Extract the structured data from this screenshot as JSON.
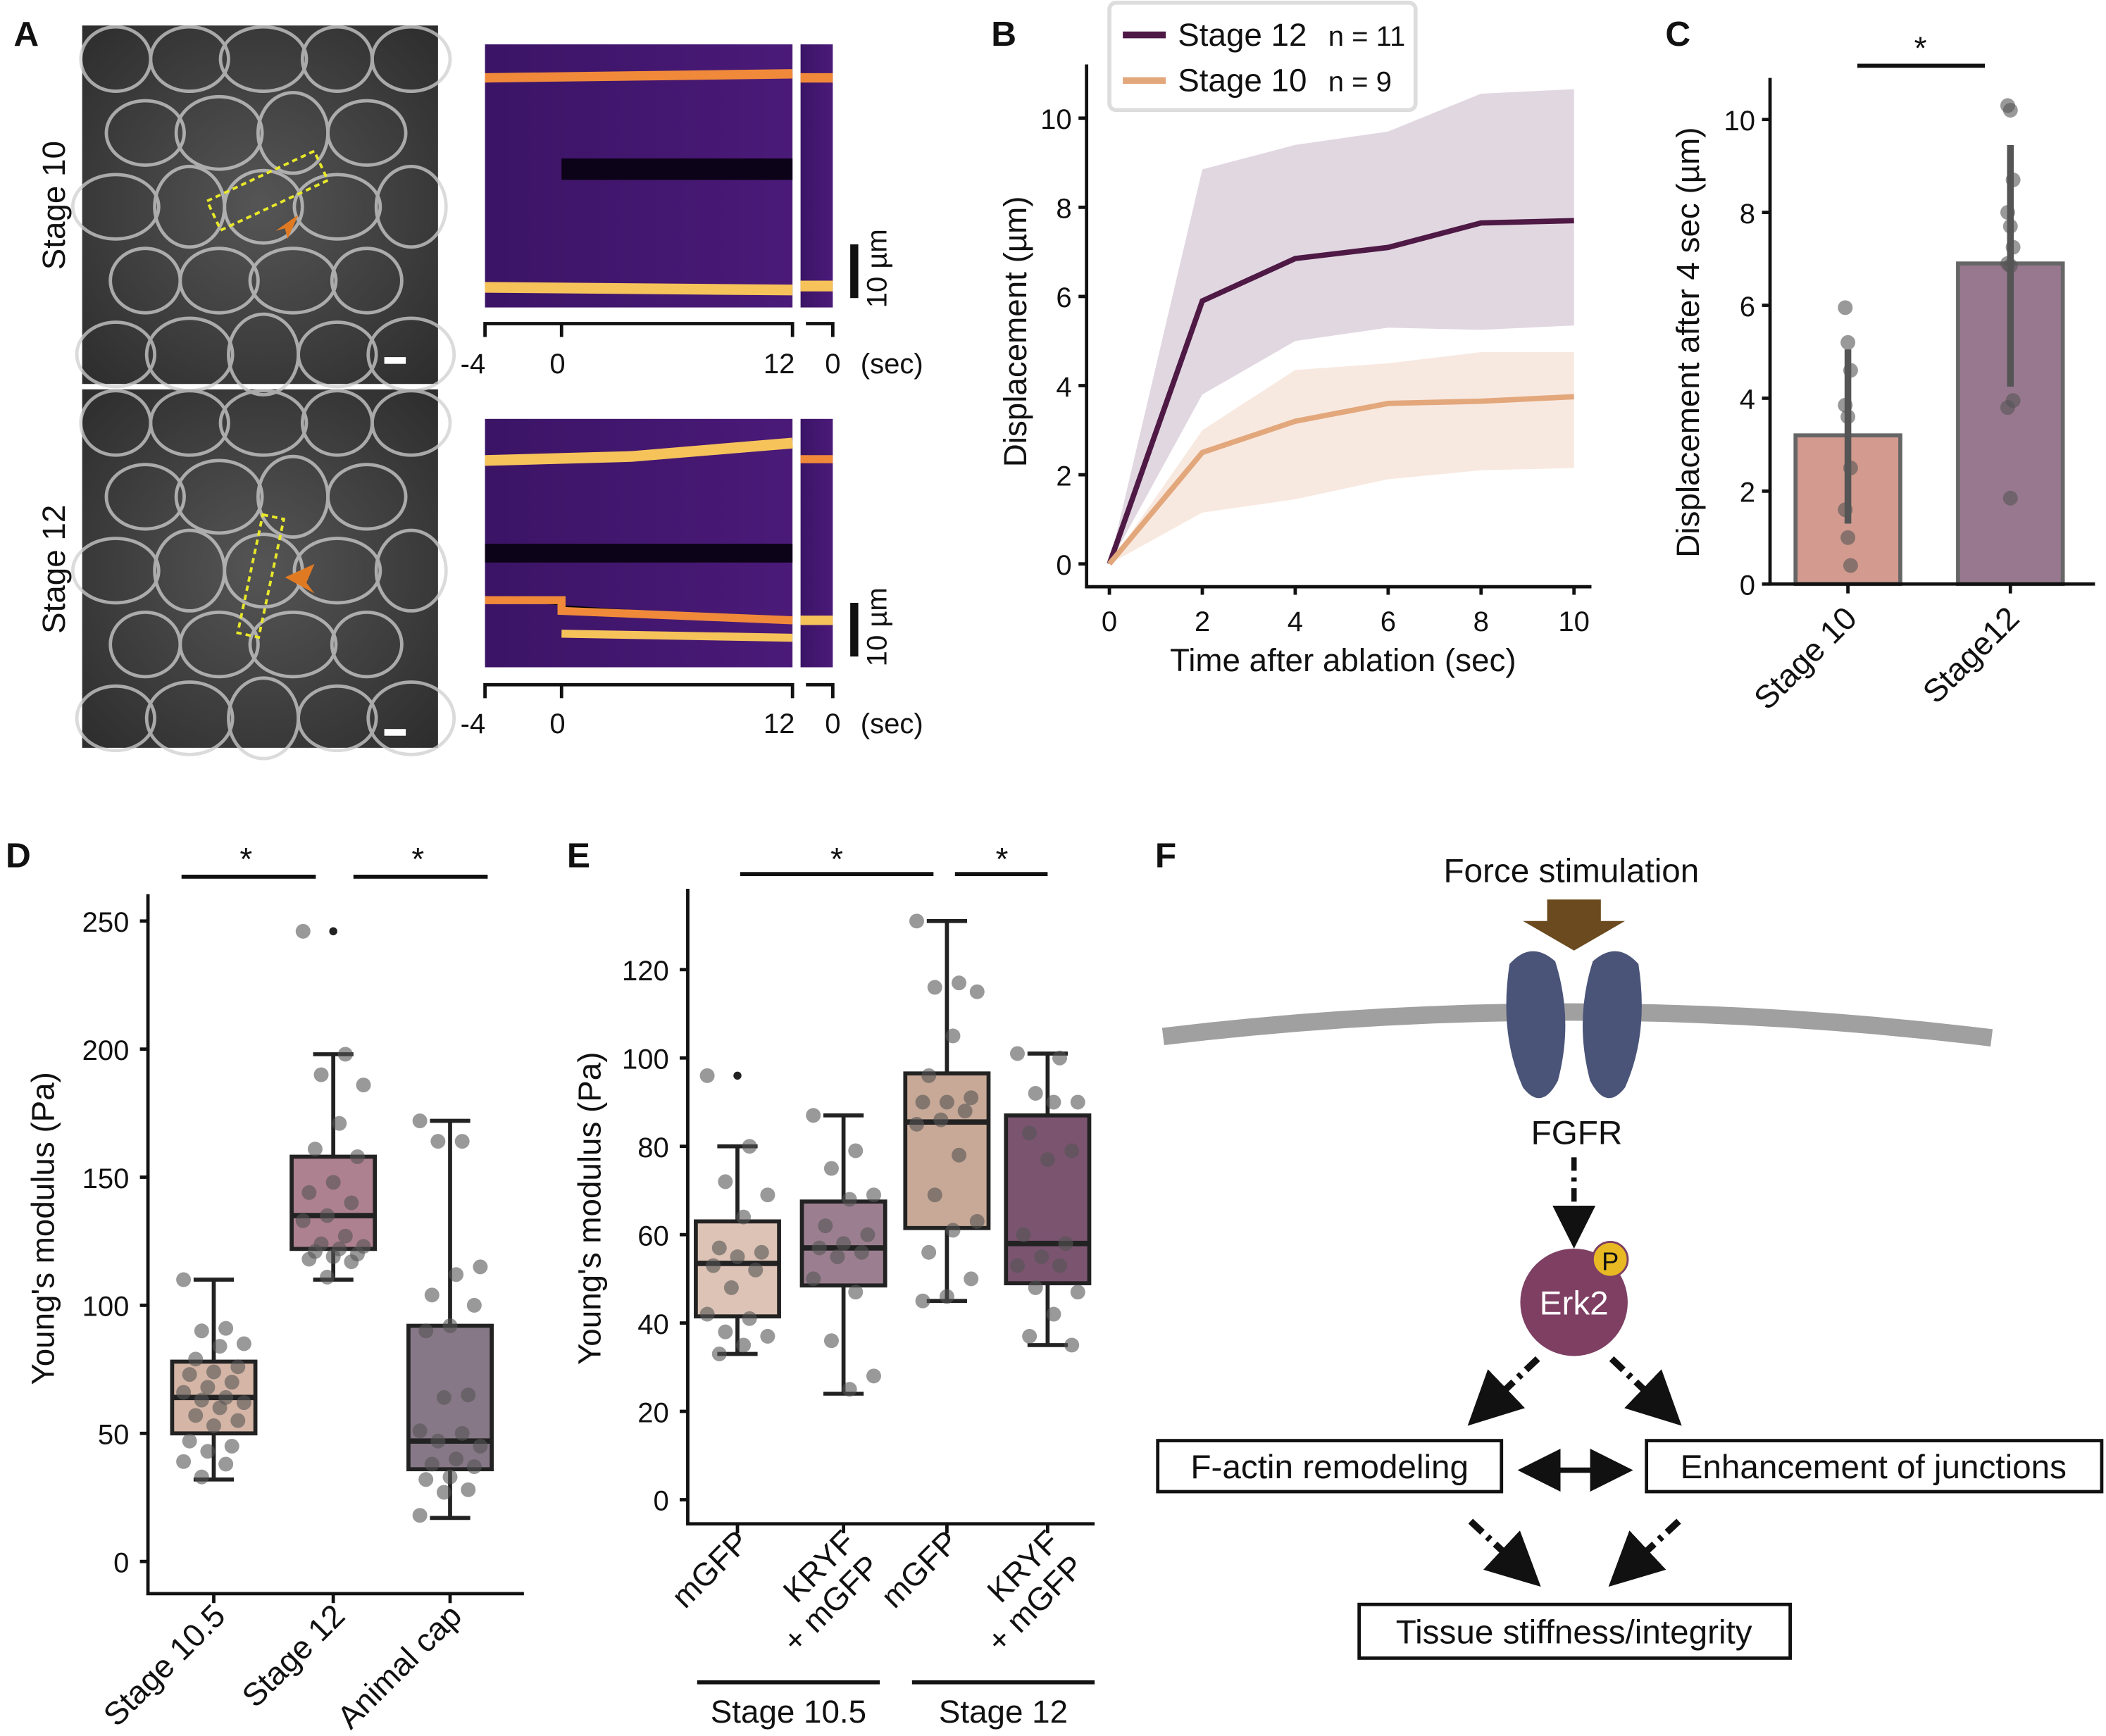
{
  "panels": {
    "A": "A",
    "B": "B",
    "C": "C",
    "D": "D",
    "E": "E",
    "F": "F"
  },
  "panel_a": {
    "rows": [
      "Stage 10",
      "Stage 12"
    ],
    "scale_label": "10 µm",
    "time_ticks": [
      "-4",
      "0",
      "12",
      "0",
      "(sec)"
    ],
    "kymo_colors": {
      "background": "#3b1466",
      "signal": "#f6c35a"
    },
    "arrow_color": "#e07a22",
    "roi_color": "#e8e82a"
  },
  "chart_data": [
    {
      "panel": "B",
      "type": "line",
      "xlabel": "Time after ablation (sec)",
      "ylabel": "Displacement (µm)",
      "xlim": [
        0,
        10
      ],
      "ylim": [
        0,
        10
      ],
      "xticks": [
        "0",
        "2",
        "4",
        "6",
        "8",
        "10"
      ],
      "yticks": [
        "0",
        "2",
        "4",
        "6",
        "8",
        "10"
      ],
      "legend_position": "top-left",
      "x": [
        0,
        2,
        4,
        6,
        8,
        10
      ],
      "series": [
        {
          "name": "Stage 12",
          "n_label": "n = 11",
          "color": "#4e1945",
          "band_color": "#dcd0dc",
          "values": [
            0,
            5.9,
            6.85,
            7.1,
            7.65,
            7.7
          ],
          "upper": [
            0,
            8.85,
            9.4,
            9.7,
            10.55,
            10.65
          ],
          "lower": [
            0,
            3.8,
            5.0,
            5.3,
            5.25,
            5.35
          ]
        },
        {
          "name": "Stage 10",
          "n_label": "n = 9",
          "color": "#e3a77c",
          "band_color": "#f5e1d6",
          "values": [
            0,
            2.5,
            3.2,
            3.6,
            3.65,
            3.75
          ],
          "upper": [
            0,
            3.0,
            4.35,
            4.5,
            4.75,
            4.75
          ],
          "lower": [
            0,
            1.15,
            1.45,
            1.9,
            2.1,
            2.15
          ]
        }
      ]
    },
    {
      "panel": "C",
      "type": "bar",
      "ylabel": "Displacement after 4 sec (µm)",
      "ylim": [
        0,
        11
      ],
      "yticks": [
        "0",
        "2",
        "4",
        "6",
        "8",
        "10"
      ],
      "categories": [
        "Stage 10",
        "Stage12"
      ],
      "values": [
        3.2,
        6.9
      ],
      "error": [
        [
          1.3,
          5.05
        ],
        [
          4.25,
          9.45
        ]
      ],
      "colors": [
        "#d39b8f",
        "#98788e"
      ],
      "points": [
        [
          5.95,
          5.2,
          4.6,
          3.85,
          3.6,
          2.5,
          1.6,
          1.0,
          0.4
        ],
        [
          10.3,
          10.2,
          8.7,
          8.0,
          7.7,
          7.25,
          6.9,
          6.85,
          3.95,
          3.8,
          1.85
        ]
      ],
      "significance": "*"
    },
    {
      "panel": "D",
      "type": "box",
      "ylabel": "Young's modulus (Pa)",
      "ylim": [
        0,
        260
      ],
      "yticks": [
        "0",
        "50",
        "100",
        "150",
        "200",
        "250"
      ],
      "categories": [
        "Stage 10.5",
        "Stage 12",
        "Animal cap"
      ],
      "colors": [
        "#d5b6a6",
        "#ae8190",
        "#877887"
      ],
      "boxes": [
        {
          "min": 32,
          "q1": 50,
          "median": 64,
          "q3": 78,
          "max": 110,
          "outliers": []
        },
        {
          "min": 110,
          "q1": 122,
          "median": 135,
          "q3": 158,
          "max": 198,
          "outliers": [
            246
          ]
        },
        {
          "min": 17,
          "q1": 36,
          "median": 47,
          "q3": 92,
          "max": 172,
          "outliers": []
        }
      ],
      "points": [
        [
          110,
          91,
          90,
          85,
          84,
          79,
          76,
          74,
          73,
          70,
          68,
          66,
          64,
          63,
          62,
          60,
          57,
          55,
          53,
          47,
          45,
          43,
          39,
          38,
          33
        ],
        [
          246,
          198,
          190,
          186,
          171,
          161,
          158,
          148,
          144,
          140,
          135,
          133,
          127,
          124,
          123,
          122,
          121,
          120,
          119,
          118,
          117,
          111
        ],
        [
          172,
          164,
          164,
          115,
          112,
          104,
          100,
          92,
          90,
          65,
          64,
          51,
          50,
          47,
          45,
          40,
          38,
          37,
          33,
          32,
          28,
          27,
          18
        ]
      ],
      "significance": [
        "*",
        "*"
      ]
    },
    {
      "panel": "E",
      "type": "box",
      "ylabel": "Young's modulus (Pa)",
      "ylim": [
        -5,
        140
      ],
      "yticks": [
        "0",
        "20",
        "40",
        "60",
        "80",
        "100",
        "120"
      ],
      "categories": [
        "mGFP",
        "KRYF\n+ mGFP",
        "mGFP",
        "KRYF\n+ mGFP"
      ],
      "groups": [
        "Stage 10.5",
        "Stage 12"
      ],
      "colors": [
        "#dcc3b5",
        "#9b7f90",
        "#c8a997",
        "#7b5470"
      ],
      "boxes": [
        {
          "min": 33,
          "q1": 41.5,
          "median": 53.5,
          "q3": 63,
          "max": 80,
          "outliers": [
            96
          ]
        },
        {
          "min": 24,
          "q1": 48.5,
          "median": 57,
          "q3": 67.5,
          "max": 87,
          "outliers": []
        },
        {
          "min": 45,
          "q1": 61.5,
          "median": 85.5,
          "q3": 96.5,
          "max": 131,
          "outliers": []
        },
        {
          "min": 35,
          "q1": 49,
          "median": 58,
          "q3": 87,
          "max": 101,
          "outliers": []
        }
      ],
      "points": [
        [
          96,
          80,
          72,
          69,
          64,
          57,
          56,
          55,
          53,
          52,
          48,
          42,
          41,
          38,
          37,
          35,
          33
        ],
        [
          87,
          79,
          75,
          69,
          68,
          62,
          60,
          58,
          57,
          56,
          55,
          50,
          47,
          36,
          28,
          25
        ],
        [
          131,
          117,
          116,
          115,
          105,
          96,
          91,
          90,
          90,
          88,
          86,
          85,
          78,
          69,
          63,
          61,
          56,
          50,
          46,
          45
        ],
        [
          101,
          100,
          92,
          90,
          90,
          83,
          79,
          77,
          60,
          58,
          55,
          53,
          53,
          48,
          47,
          42,
          37,
          35
        ]
      ],
      "significance": [
        "*",
        "*"
      ]
    }
  ],
  "panel_f": {
    "stimulus": "Force stimulation",
    "receptor": "FGFR",
    "kinase": "Erk2",
    "phospho": "P",
    "box_left": "F-actin remodeling",
    "box_right": "Enhancement of junctions",
    "box_bottom": "Tissue stiffness/integrity",
    "colors": {
      "force_arrow": "#6b4a1f",
      "receptor": "#4a5478",
      "membrane": "#a0a0a0",
      "erk2": "#7e3f63",
      "phospho": "#e8b923"
    }
  }
}
